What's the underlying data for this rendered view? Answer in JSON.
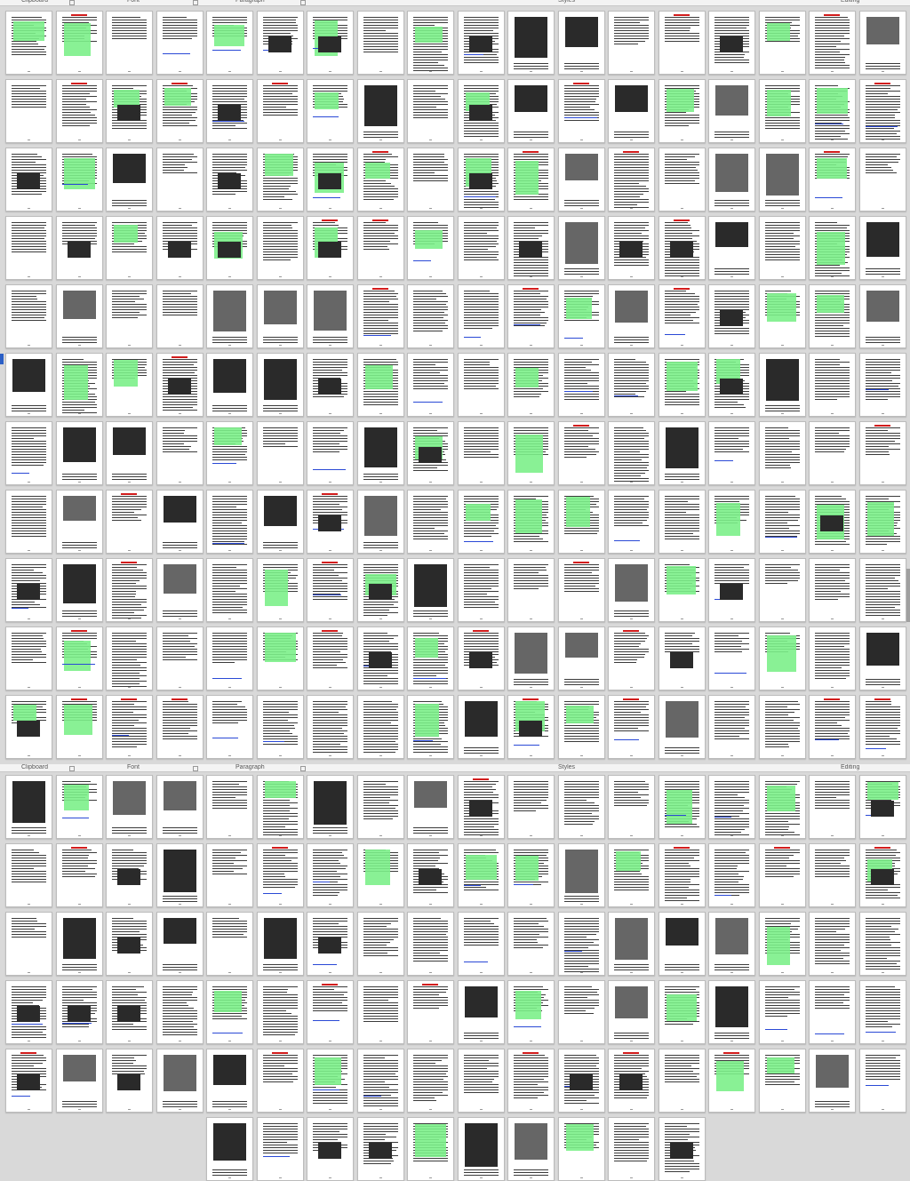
{
  "ribbon": {
    "groups": [
      "Clipboard",
      "Font",
      "Paragraph",
      "Styles",
      "Editing"
    ]
  },
  "colors": {
    "highlight": "#7cf08a",
    "link": "#2a49d6",
    "heading": "#d21c1c",
    "background": "#d9d9d9"
  },
  "view": {
    "type": "multi-page thumbnail view",
    "columns": 18
  }
}
